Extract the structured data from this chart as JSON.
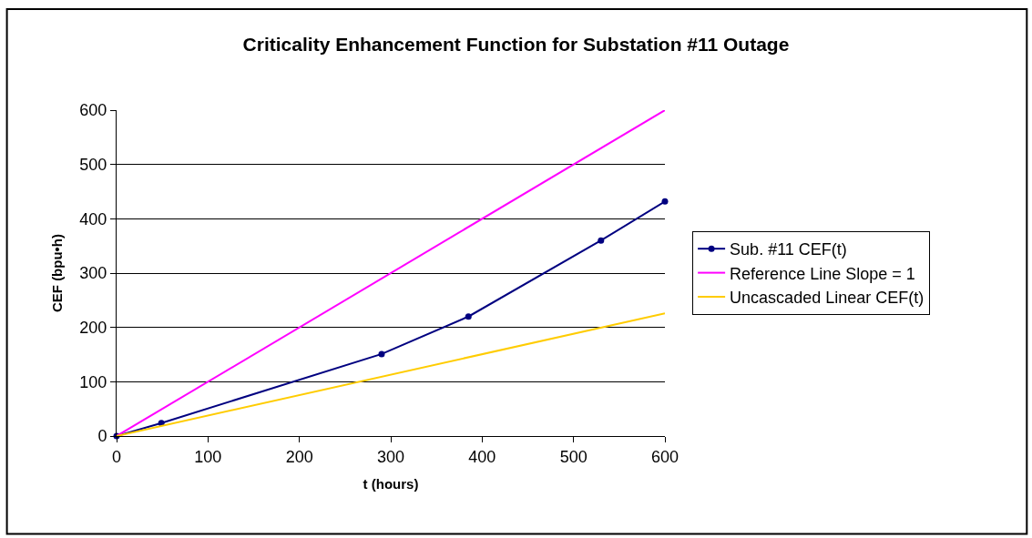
{
  "chart_data": {
    "type": "line",
    "title": "Criticality Enhancement Function for Substation #11 Outage",
    "xlabel": "t (hours)",
    "ylabel": "CEF (bpu•h)",
    "series": [
      {
        "name": "Sub. #11 CEF(t)",
        "color": "#000080",
        "marker": "circle",
        "x": [
          0,
          49,
          290,
          385,
          530,
          600
        ],
        "values": [
          0,
          24,
          151,
          220,
          360,
          432
        ]
      },
      {
        "name": "Reference Line Slope = 1",
        "color": "#ff00ff",
        "marker": "none",
        "x": [
          0,
          600
        ],
        "values": [
          0,
          600
        ]
      },
      {
        "name": "Uncascaded Linear CEF(t)",
        "color": "#ffcc00",
        "marker": "none",
        "x": [
          0,
          600
        ],
        "values": [
          0,
          226
        ]
      }
    ],
    "xlim": [
      0,
      600
    ],
    "xticks": [
      0,
      100,
      200,
      300,
      400,
      500,
      600
    ],
    "ylim": [
      0,
      600
    ],
    "yticks": [
      0,
      100,
      200,
      300,
      400,
      500,
      600
    ],
    "grid": "y",
    "legend": "right",
    "line_style": "solid"
  }
}
